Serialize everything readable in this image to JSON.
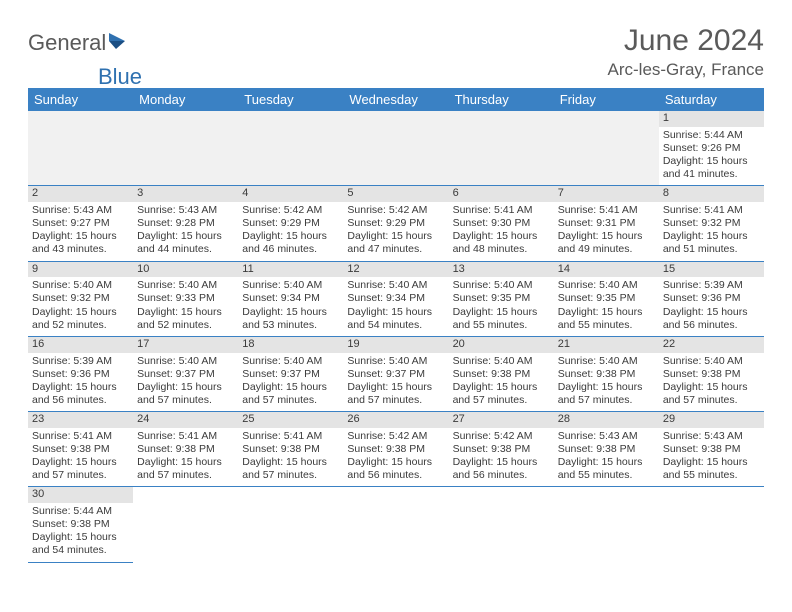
{
  "logo": {
    "part1": "General",
    "part2": "Blue"
  },
  "title": "June 2024",
  "location": "Arc-les-Gray, France",
  "colors": {
    "header_bg": "#3a81c4",
    "header_text": "#ffffff",
    "daynum_bg": "#e4e4e4",
    "text": "#3b3b3b",
    "logo_blue": "#2f71b0",
    "logo_gray": "#5a5a5a",
    "border": "#3a81c4"
  },
  "weekdays": [
    "Sunday",
    "Monday",
    "Tuesday",
    "Wednesday",
    "Thursday",
    "Friday",
    "Saturday"
  ],
  "weeks": [
    [
      null,
      null,
      null,
      null,
      null,
      null,
      {
        "n": "1",
        "sunrise": "Sunrise: 5:44 AM",
        "sunset": "Sunset: 9:26 PM",
        "day1": "Daylight: 15 hours",
        "day2": "and 41 minutes."
      }
    ],
    [
      {
        "n": "2",
        "sunrise": "Sunrise: 5:43 AM",
        "sunset": "Sunset: 9:27 PM",
        "day1": "Daylight: 15 hours",
        "day2": "and 43 minutes."
      },
      {
        "n": "3",
        "sunrise": "Sunrise: 5:43 AM",
        "sunset": "Sunset: 9:28 PM",
        "day1": "Daylight: 15 hours",
        "day2": "and 44 minutes."
      },
      {
        "n": "4",
        "sunrise": "Sunrise: 5:42 AM",
        "sunset": "Sunset: 9:29 PM",
        "day1": "Daylight: 15 hours",
        "day2": "and 46 minutes."
      },
      {
        "n": "5",
        "sunrise": "Sunrise: 5:42 AM",
        "sunset": "Sunset: 9:29 PM",
        "day1": "Daylight: 15 hours",
        "day2": "and 47 minutes."
      },
      {
        "n": "6",
        "sunrise": "Sunrise: 5:41 AM",
        "sunset": "Sunset: 9:30 PM",
        "day1": "Daylight: 15 hours",
        "day2": "and 48 minutes."
      },
      {
        "n": "7",
        "sunrise": "Sunrise: 5:41 AM",
        "sunset": "Sunset: 9:31 PM",
        "day1": "Daylight: 15 hours",
        "day2": "and 49 minutes."
      },
      {
        "n": "8",
        "sunrise": "Sunrise: 5:41 AM",
        "sunset": "Sunset: 9:32 PM",
        "day1": "Daylight: 15 hours",
        "day2": "and 51 minutes."
      }
    ],
    [
      {
        "n": "9",
        "sunrise": "Sunrise: 5:40 AM",
        "sunset": "Sunset: 9:32 PM",
        "day1": "Daylight: 15 hours",
        "day2": "and 52 minutes."
      },
      {
        "n": "10",
        "sunrise": "Sunrise: 5:40 AM",
        "sunset": "Sunset: 9:33 PM",
        "day1": "Daylight: 15 hours",
        "day2": "and 52 minutes."
      },
      {
        "n": "11",
        "sunrise": "Sunrise: 5:40 AM",
        "sunset": "Sunset: 9:34 PM",
        "day1": "Daylight: 15 hours",
        "day2": "and 53 minutes."
      },
      {
        "n": "12",
        "sunrise": "Sunrise: 5:40 AM",
        "sunset": "Sunset: 9:34 PM",
        "day1": "Daylight: 15 hours",
        "day2": "and 54 minutes."
      },
      {
        "n": "13",
        "sunrise": "Sunrise: 5:40 AM",
        "sunset": "Sunset: 9:35 PM",
        "day1": "Daylight: 15 hours",
        "day2": "and 55 minutes."
      },
      {
        "n": "14",
        "sunrise": "Sunrise: 5:40 AM",
        "sunset": "Sunset: 9:35 PM",
        "day1": "Daylight: 15 hours",
        "day2": "and 55 minutes."
      },
      {
        "n": "15",
        "sunrise": "Sunrise: 5:39 AM",
        "sunset": "Sunset: 9:36 PM",
        "day1": "Daylight: 15 hours",
        "day2": "and 56 minutes."
      }
    ],
    [
      {
        "n": "16",
        "sunrise": "Sunrise: 5:39 AM",
        "sunset": "Sunset: 9:36 PM",
        "day1": "Daylight: 15 hours",
        "day2": "and 56 minutes."
      },
      {
        "n": "17",
        "sunrise": "Sunrise: 5:40 AM",
        "sunset": "Sunset: 9:37 PM",
        "day1": "Daylight: 15 hours",
        "day2": "and 57 minutes."
      },
      {
        "n": "18",
        "sunrise": "Sunrise: 5:40 AM",
        "sunset": "Sunset: 9:37 PM",
        "day1": "Daylight: 15 hours",
        "day2": "and 57 minutes."
      },
      {
        "n": "19",
        "sunrise": "Sunrise: 5:40 AM",
        "sunset": "Sunset: 9:37 PM",
        "day1": "Daylight: 15 hours",
        "day2": "and 57 minutes."
      },
      {
        "n": "20",
        "sunrise": "Sunrise: 5:40 AM",
        "sunset": "Sunset: 9:38 PM",
        "day1": "Daylight: 15 hours",
        "day2": "and 57 minutes."
      },
      {
        "n": "21",
        "sunrise": "Sunrise: 5:40 AM",
        "sunset": "Sunset: 9:38 PM",
        "day1": "Daylight: 15 hours",
        "day2": "and 57 minutes."
      },
      {
        "n": "22",
        "sunrise": "Sunrise: 5:40 AM",
        "sunset": "Sunset: 9:38 PM",
        "day1": "Daylight: 15 hours",
        "day2": "and 57 minutes."
      }
    ],
    [
      {
        "n": "23",
        "sunrise": "Sunrise: 5:41 AM",
        "sunset": "Sunset: 9:38 PM",
        "day1": "Daylight: 15 hours",
        "day2": "and 57 minutes."
      },
      {
        "n": "24",
        "sunrise": "Sunrise: 5:41 AM",
        "sunset": "Sunset: 9:38 PM",
        "day1": "Daylight: 15 hours",
        "day2": "and 57 minutes."
      },
      {
        "n": "25",
        "sunrise": "Sunrise: 5:41 AM",
        "sunset": "Sunset: 9:38 PM",
        "day1": "Daylight: 15 hours",
        "day2": "and 57 minutes."
      },
      {
        "n": "26",
        "sunrise": "Sunrise: 5:42 AM",
        "sunset": "Sunset: 9:38 PM",
        "day1": "Daylight: 15 hours",
        "day2": "and 56 minutes."
      },
      {
        "n": "27",
        "sunrise": "Sunrise: 5:42 AM",
        "sunset": "Sunset: 9:38 PM",
        "day1": "Daylight: 15 hours",
        "day2": "and 56 minutes."
      },
      {
        "n": "28",
        "sunrise": "Sunrise: 5:43 AM",
        "sunset": "Sunset: 9:38 PM",
        "day1": "Daylight: 15 hours",
        "day2": "and 55 minutes."
      },
      {
        "n": "29",
        "sunrise": "Sunrise: 5:43 AM",
        "sunset": "Sunset: 9:38 PM",
        "day1": "Daylight: 15 hours",
        "day2": "and 55 minutes."
      }
    ],
    [
      {
        "n": "30",
        "sunrise": "Sunrise: 5:44 AM",
        "sunset": "Sunset: 9:38 PM",
        "day1": "Daylight: 15 hours",
        "day2": "and 54 minutes."
      },
      null,
      null,
      null,
      null,
      null,
      null
    ]
  ]
}
